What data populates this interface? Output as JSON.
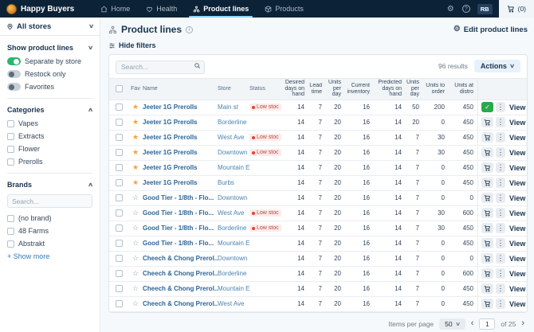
{
  "topnav": {
    "brand": "Happy Buyers",
    "items": [
      {
        "label": "Home",
        "active": false
      },
      {
        "label": "Health",
        "active": false
      },
      {
        "label": "Product lines",
        "active": true
      },
      {
        "label": "Products",
        "active": false
      }
    ],
    "user_initials": "RB",
    "cart_count": "(0)"
  },
  "sidebar": {
    "store_selector": "All stores",
    "show_product_lines": {
      "label": "Show product lines",
      "toggles": [
        {
          "label": "Separate by store",
          "on": true
        },
        {
          "label": "Restock only",
          "on": false
        },
        {
          "label": "Favorites",
          "on": false
        }
      ]
    },
    "categories": {
      "label": "Categories",
      "options": [
        "Vapes",
        "Extracts",
        "Flower",
        "Prerolls"
      ]
    },
    "brands": {
      "label": "Brands",
      "search_placeholder": "Search...",
      "options": [
        "(no brand)",
        "48 Farms",
        "Abstrakt"
      ],
      "show_more": "+ Show more"
    }
  },
  "main": {
    "title": "Product lines",
    "edit_link": "Edit product lines",
    "hide_filters": "Hide filters",
    "search_placeholder": "Search...",
    "results_count": "96 results",
    "actions_label": "Actions",
    "table": {
      "columns": [
        "Fav",
        "Name",
        "Store",
        "Status",
        "Desired days on hand",
        "Lead time",
        "Units per day",
        "Current inventory",
        "Predicted days on hand",
        "Units per day",
        "Units to order",
        "Units at distro"
      ],
      "status_label": "Low stock",
      "view_label": "View",
      "rows": [
        {
          "fav": true,
          "name": "Jeeter 1G Prerolls",
          "store": "Main st",
          "low_stock": true,
          "values": [
            "14",
            "7",
            "20",
            "16",
            "14",
            "50",
            "200",
            "450"
          ],
          "in_cart": true
        },
        {
          "fav": true,
          "name": "Jeeter 1G Prerolls",
          "store": "Borderline",
          "low_stock": false,
          "values": [
            "14",
            "7",
            "20",
            "16",
            "14",
            "20",
            "0",
            "450"
          ],
          "in_cart": false
        },
        {
          "fav": true,
          "name": "Jeeter 1G Prerolls",
          "store": "West Ave",
          "low_stock": true,
          "values": [
            "14",
            "7",
            "20",
            "16",
            "14",
            "7",
            "30",
            "450"
          ],
          "in_cart": false
        },
        {
          "fav": true,
          "name": "Jeeter 1G Prerolls",
          "store": "Downtown",
          "low_stock": true,
          "values": [
            "14",
            "7",
            "20",
            "16",
            "14",
            "7",
            "30",
            "450"
          ],
          "in_cart": false
        },
        {
          "fav": true,
          "name": "Jeeter 1G Prerolls",
          "store": "Mountain E",
          "low_stock": false,
          "values": [
            "14",
            "7",
            "20",
            "16",
            "14",
            "7",
            "0",
            "450"
          ],
          "in_cart": false
        },
        {
          "fav": true,
          "name": "Jeeter 1G Prerolls",
          "store": "Burbs",
          "low_stock": false,
          "values": [
            "14",
            "7",
            "20",
            "16",
            "14",
            "7",
            "0",
            "450"
          ],
          "in_cart": false
        },
        {
          "fav": false,
          "name": "Good Tier - 1/8th - Flo...",
          "store": "Downtown",
          "low_stock": false,
          "values": [
            "14",
            "7",
            "20",
            "16",
            "14",
            "7",
            "0",
            "0"
          ],
          "in_cart": false
        },
        {
          "fav": false,
          "name": "Good Tier - 1/8th - Flo...",
          "store": "West Ave",
          "low_stock": true,
          "values": [
            "14",
            "7",
            "20",
            "16",
            "14",
            "7",
            "30",
            "600"
          ],
          "in_cart": false
        },
        {
          "fav": false,
          "name": "Good Tier - 1/8th - Flo...",
          "store": "Borderline",
          "low_stock": true,
          "values": [
            "14",
            "7",
            "20",
            "16",
            "14",
            "7",
            "30",
            "450"
          ],
          "in_cart": false
        },
        {
          "fav": false,
          "name": "Good Tier - 1/8th - Flo...",
          "store": "Mountain E",
          "low_stock": false,
          "values": [
            "14",
            "7",
            "20",
            "16",
            "14",
            "7",
            "0",
            "450"
          ],
          "in_cart": false
        },
        {
          "fav": false,
          "name": "Cheech & Chong Prerol...",
          "store": "Downtown",
          "low_stock": false,
          "values": [
            "14",
            "7",
            "20",
            "16",
            "14",
            "7",
            "0",
            "0"
          ],
          "in_cart": false
        },
        {
          "fav": false,
          "name": "Cheech & Chong Prerol...",
          "store": "Borderline",
          "low_stock": false,
          "values": [
            "14",
            "7",
            "20",
            "16",
            "14",
            "7",
            "0",
            "600"
          ],
          "in_cart": false
        },
        {
          "fav": false,
          "name": "Cheech & Chong Prerol...",
          "store": "Mountain E",
          "low_stock": false,
          "values": [
            "14",
            "7",
            "20",
            "16",
            "14",
            "7",
            "0",
            "450"
          ],
          "in_cart": false
        },
        {
          "fav": false,
          "name": "Cheech & Chong Prerol...",
          "store": "West Ave",
          "low_stock": false,
          "values": [
            "14",
            "7",
            "20",
            "16",
            "14",
            "7",
            "0",
            "450"
          ],
          "in_cart": false
        }
      ]
    },
    "pagination": {
      "items_per_page_label": "Items per page",
      "page_size": "50",
      "page": "1",
      "of_label": "of 25"
    }
  },
  "colors": {
    "navbar_bg": "#0c2237",
    "active_underline": "#8fd4f2",
    "name_link_blue": "#2c6598",
    "store_link_blue": "#4c84b0",
    "favorite_orange": "#f2a33c",
    "success_green": "#29a84c",
    "low_stock_red": "#b9473d",
    "toggle_on_green": "#2db56f"
  }
}
